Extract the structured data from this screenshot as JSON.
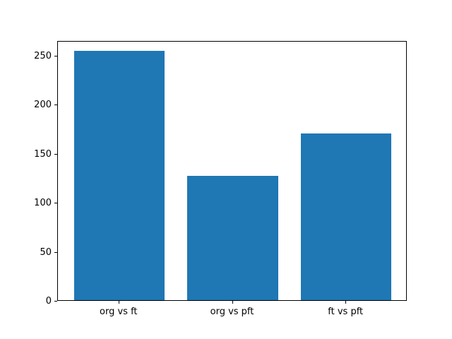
{
  "figure": {
    "background_color": "#ffffff",
    "spine_color": "#000000",
    "text_color": "#000000"
  },
  "chart_data": {
    "type": "bar",
    "categories": [
      "org vs ft",
      "org vs pft",
      "ft vs pft"
    ],
    "values": [
      254,
      127,
      170
    ],
    "title": "",
    "xlabel": "",
    "ylabel": "",
    "yticks": [
      0,
      50,
      100,
      150,
      200,
      250
    ],
    "ylim": [
      0,
      265
    ],
    "xlim": [
      -0.54,
      2.54
    ],
    "bar_width": 0.8,
    "bar_color": "#1f77b4",
    "grid": false,
    "legend": null
  }
}
